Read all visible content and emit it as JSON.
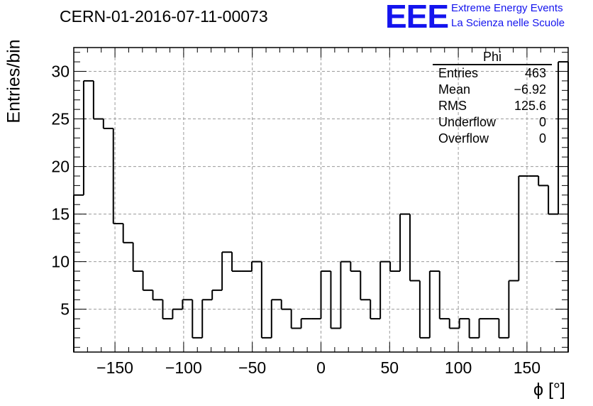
{
  "title": "CERN-01-2016-07-11-00073",
  "logo": {
    "letters": "EEE",
    "line1": "Extreme Energy Events",
    "line2": "La Scienza nelle Scuole",
    "color": "#1414ee"
  },
  "stats": {
    "title": "Phi",
    "rows": [
      {
        "label": "Entries",
        "value": "463"
      },
      {
        "label": "Mean",
        "value": "−6.92"
      },
      {
        "label": "RMS",
        "value": "125.6"
      },
      {
        "label": "Underflow",
        "value": "0"
      },
      {
        "label": "Overflow",
        "value": "0"
      }
    ]
  },
  "chart_data": {
    "type": "bar",
    "style": "step-histogram",
    "xlabel": "ϕ [°]",
    "ylabel": "Entries/bin",
    "xlim": [
      -180,
      180
    ],
    "ylim": [
      0.5,
      32.5
    ],
    "grid": true,
    "bin_width": 7.2,
    "x_ticks": [
      -150,
      -100,
      -50,
      0,
      50,
      100,
      150
    ],
    "x_tick_labels": [
      "−150",
      "−100",
      "−50",
      "0",
      "50",
      "100",
      "150"
    ],
    "y_ticks": [
      5,
      10,
      15,
      20,
      25,
      30
    ],
    "y_tick_labels": [
      "5",
      "10",
      "15",
      "20",
      "25",
      "30"
    ],
    "values": [
      17,
      29,
      25,
      24,
      14,
      12,
      9,
      7,
      6,
      4,
      5,
      6,
      2,
      6,
      7,
      11,
      9,
      9,
      10,
      2,
      6,
      5,
      3,
      4,
      4,
      9,
      3,
      10,
      9,
      6,
      4,
      10,
      9,
      15,
      8,
      2,
      9,
      4,
      3,
      4,
      2,
      4,
      4,
      2,
      8,
      19,
      19,
      18,
      15,
      31
    ]
  }
}
